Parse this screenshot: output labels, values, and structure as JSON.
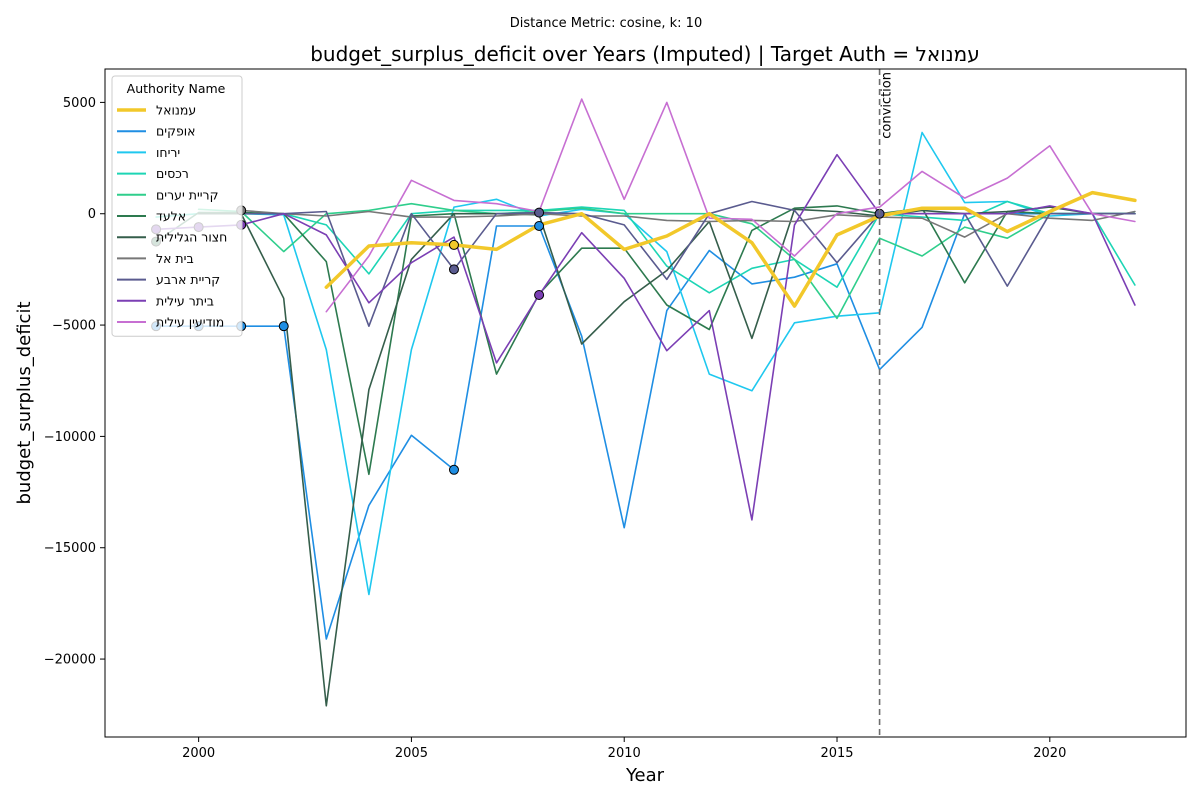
{
  "suptitle": "Distance Metric: cosine, k: 10",
  "chart_data": {
    "type": "line",
    "title": "budget_surplus_deficit over Years (Imputed) | Target Auth = עמנואל",
    "xlabel": "Year",
    "ylabel": "budget_surplus_deficit",
    "xlim": [
      1997.8,
      2023.2
    ],
    "ylim": [
      -23500,
      6500
    ],
    "x_ticks": [
      2000,
      2005,
      2010,
      2015,
      2020
    ],
    "x_tick_labels": [
      "2000",
      "2005",
      "2010",
      "2015",
      "2020"
    ],
    "y_ticks": [
      5000,
      0,
      -5000,
      -10000,
      -15000,
      -20000
    ],
    "y_tick_labels": [
      "5000",
      "0",
      "−5000",
      "−10000",
      "−15000",
      "−20000"
    ],
    "grid": false,
    "legend_title": "Authority Name",
    "legend_position": "upper left",
    "x": [
      1999,
      2000,
      2001,
      2002,
      2003,
      2004,
      2005,
      2006,
      2007,
      2008,
      2009,
      2010,
      2011,
      2012,
      2013,
      2014,
      2015,
      2016,
      2017,
      2018,
      2019,
      2020,
      2021,
      2022
    ],
    "annotation": {
      "x": 2016,
      "label": "conviction",
      "style": "dashed",
      "color": "#6e6e6e"
    },
    "series": [
      {
        "name": "עמנואל",
        "color": "#f2c82a",
        "width": 3.5,
        "target": true,
        "values": [
          null,
          null,
          null,
          null,
          -3300,
          -1450,
          -1300,
          -1400,
          -1600,
          -500,
          0,
          -1600,
          -1000,
          0,
          -1300,
          -4150,
          -950,
          -100,
          250,
          250,
          -800,
          100,
          950,
          600
        ],
        "imputed_years": [
          2006
        ],
        "imputed_values": [
          -1400
        ]
      },
      {
        "name": "אופקים",
        "color": "#1f8ee3",
        "width": 1.6,
        "values": [
          -5050,
          -5050,
          -5050,
          -5050,
          -19100,
          -13100,
          -9950,
          -11500,
          -550,
          -550,
          -5500,
          -14100,
          -4350,
          -1650,
          -3150,
          -2850,
          -2250,
          -7000,
          -5100,
          0,
          0,
          0,
          0,
          0
        ],
        "imputed_years": [
          1999,
          2000,
          2001,
          2002,
          2006,
          2008
        ],
        "imputed_values": [
          -5050,
          -5050,
          -5050,
          -5050,
          -11500,
          -550
        ]
      },
      {
        "name": "יריחו",
        "color": "#1fc8ef",
        "width": 1.6,
        "values": [
          null,
          50,
          0,
          -50,
          -6100,
          -17100,
          -6100,
          300,
          650,
          -100,
          200,
          0,
          -1700,
          -7200,
          -7950,
          -4900,
          -4600,
          -4450,
          3650,
          500,
          550,
          -100,
          0,
          0
        ],
        "imputed_years": [],
        "imputed_values": []
      },
      {
        "name": "רכסים",
        "color": "#1dd5b5",
        "width": 1.6,
        "values": [
          -150,
          0,
          0,
          0,
          -500,
          -2700,
          0,
          150,
          150,
          150,
          300,
          150,
          -2350,
          -3550,
          -2450,
          -2050,
          -3300,
          0,
          -150,
          -300,
          550,
          0,
          0,
          -3200
        ],
        "imputed_years": [],
        "imputed_values": []
      },
      {
        "name": "קריית יערים",
        "color": "#2fce8c",
        "width": 1.6,
        "values": [
          null,
          200,
          100,
          -1700,
          0,
          150,
          450,
          150,
          0,
          100,
          250,
          0,
          0,
          0,
          -450,
          -2050,
          -4700,
          -1100,
          -1900,
          -600,
          -1100,
          0,
          0,
          0
        ],
        "imputed_years": [],
        "imputed_values": []
      },
      {
        "name": "אלעד",
        "color": "#2d7a4f",
        "width": 1.6,
        "values": [
          -1250,
          50,
          50,
          0,
          -2150,
          -11700,
          -100,
          0,
          -7200,
          -3600,
          -1550,
          -1550,
          -4100,
          -5200,
          -750,
          250,
          350,
          0,
          250,
          -3100,
          100,
          0,
          0,
          0
        ],
        "imputed_years": [
          1999
        ],
        "imputed_values": [
          -1250
        ]
      },
      {
        "name": "חצור הגלילית",
        "color": "#355e4b",
        "width": 1.6,
        "values": [
          null,
          0,
          0,
          -3800,
          -22100,
          -7900,
          -2050,
          0,
          0,
          -50,
          -5850,
          -3950,
          -2550,
          -350,
          -5600,
          200,
          100,
          -100,
          150,
          0,
          100,
          300,
          0,
          0
        ],
        "imputed_years": [],
        "imputed_values": []
      },
      {
        "name": "בית אל",
        "color": "#777777",
        "width": 1.6,
        "values": [
          null,
          null,
          150,
          0,
          -100,
          100,
          -150,
          -150,
          -100,
          0,
          -100,
          -100,
          -300,
          -350,
          -300,
          -350,
          -50,
          -150,
          -200,
          -1050,
          0,
          -200,
          -300,
          100
        ],
        "imputed_years": [
          2001
        ],
        "imputed_values": [
          150
        ]
      },
      {
        "name": "קריית ארבע",
        "color": "#5a5b8f",
        "width": 1.6,
        "values": [
          null,
          null,
          0,
          0,
          100,
          -5050,
          0,
          -2500,
          0,
          50,
          0,
          -500,
          -2950,
          0,
          550,
          150,
          -2200,
          0,
          0,
          0,
          -3250,
          0,
          0,
          0
        ],
        "imputed_years": [
          2006,
          2008,
          2016
        ],
        "imputed_values": [
          -2500,
          50,
          0
        ]
      },
      {
        "name": "ביתר עילית",
        "color": "#7b3fb4",
        "width": 1.6,
        "values": [
          -700,
          -600,
          -500,
          0,
          -950,
          -4000,
          -2200,
          -1050,
          -6700,
          -3650,
          -850,
          -2900,
          -6150,
          -4350,
          -13750,
          -500,
          2650,
          0,
          0,
          0,
          0,
          350,
          0,
          -4100
        ],
        "imputed_years": [
          1999,
          2000,
          2001,
          2008
        ],
        "imputed_values": [
          -700,
          -600,
          -500,
          -3650
        ]
      },
      {
        "name": "מודיעין עילית",
        "color": "#c76fd2",
        "width": 1.6,
        "values": [
          null,
          null,
          null,
          null,
          -4400,
          -1900,
          1500,
          600,
          450,
          100,
          5150,
          650,
          5000,
          -200,
          -250,
          -1900,
          0,
          300,
          1900,
          700,
          1600,
          3050,
          0,
          -350
        ],
        "imputed_years": [],
        "imputed_values": []
      }
    ]
  }
}
